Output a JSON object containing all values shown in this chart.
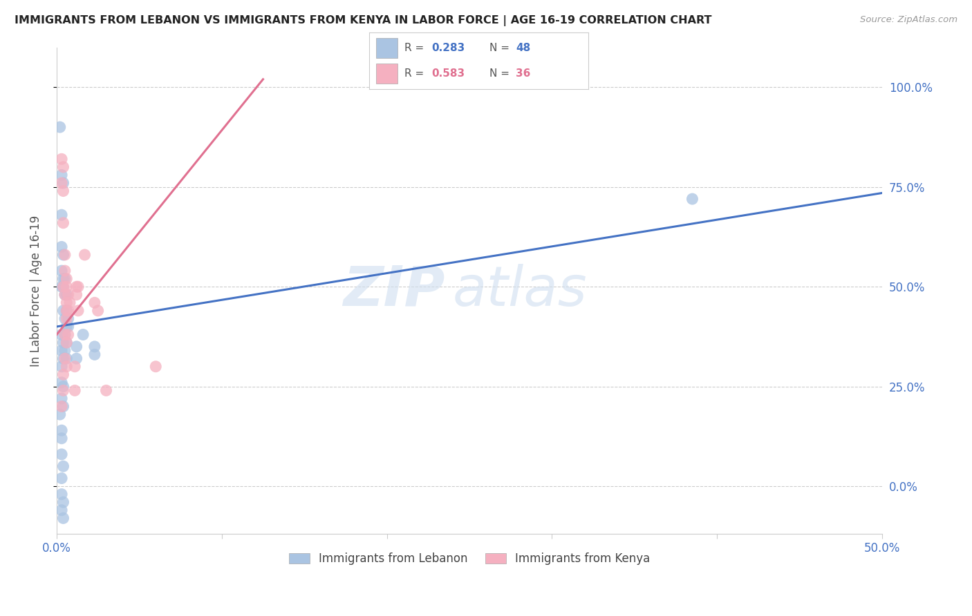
{
  "title": "IMMIGRANTS FROM LEBANON VS IMMIGRANTS FROM KENYA IN LABOR FORCE | AGE 16-19 CORRELATION CHART",
  "source": "Source: ZipAtlas.com",
  "ylabel": "In Labor Force | Age 16-19",
  "xlim": [
    0.0,
    0.5
  ],
  "ylim": [
    -0.12,
    1.1
  ],
  "xticks": [
    0.0,
    0.1,
    0.2,
    0.3,
    0.4,
    0.5
  ],
  "xtick_labels": [
    "0.0%",
    "",
    "",
    "",
    "",
    "50.0%"
  ],
  "yticks": [
    0.0,
    0.25,
    0.5,
    0.75,
    1.0
  ],
  "ytick_labels": [
    "0.0%",
    "25.0%",
    "50.0%",
    "75.0%",
    "100.0%"
  ],
  "blue_color": "#aac4e2",
  "pink_color": "#f5b0c0",
  "blue_line_color": "#4472c4",
  "pink_line_color": "#e07090",
  "watermark_text": "ZIP",
  "watermark_text2": "atlas",
  "title_color": "#222222",
  "axis_color": "#4472c4",
  "blue_scatter": [
    [
      0.002,
      0.9
    ],
    [
      0.003,
      0.78
    ],
    [
      0.004,
      0.76
    ],
    [
      0.003,
      0.68
    ],
    [
      0.003,
      0.6
    ],
    [
      0.004,
      0.58
    ],
    [
      0.003,
      0.54
    ],
    [
      0.004,
      0.52
    ],
    [
      0.005,
      0.52
    ],
    [
      0.003,
      0.5
    ],
    [
      0.004,
      0.5
    ],
    [
      0.005,
      0.48
    ],
    [
      0.006,
      0.48
    ],
    [
      0.004,
      0.44
    ],
    [
      0.006,
      0.44
    ],
    [
      0.005,
      0.42
    ],
    [
      0.007,
      0.42
    ],
    [
      0.006,
      0.4
    ],
    [
      0.007,
      0.4
    ],
    [
      0.003,
      0.38
    ],
    [
      0.005,
      0.38
    ],
    [
      0.004,
      0.36
    ],
    [
      0.006,
      0.36
    ],
    [
      0.003,
      0.34
    ],
    [
      0.005,
      0.34
    ],
    [
      0.004,
      0.32
    ],
    [
      0.006,
      0.32
    ],
    [
      0.003,
      0.3
    ],
    [
      0.003,
      0.26
    ],
    [
      0.004,
      0.25
    ],
    [
      0.003,
      0.22
    ],
    [
      0.004,
      0.2
    ],
    [
      0.002,
      0.18
    ],
    [
      0.003,
      0.14
    ],
    [
      0.003,
      0.12
    ],
    [
      0.003,
      0.08
    ],
    [
      0.004,
      0.05
    ],
    [
      0.003,
      0.02
    ],
    [
      0.003,
      -0.02
    ],
    [
      0.004,
      -0.04
    ],
    [
      0.003,
      -0.06
    ],
    [
      0.004,
      -0.08
    ],
    [
      0.012,
      0.35
    ],
    [
      0.012,
      0.32
    ],
    [
      0.016,
      0.38
    ],
    [
      0.023,
      0.35
    ],
    [
      0.023,
      0.33
    ],
    [
      0.385,
      0.72
    ]
  ],
  "pink_scatter": [
    [
      0.003,
      0.82
    ],
    [
      0.004,
      0.8
    ],
    [
      0.003,
      0.76
    ],
    [
      0.004,
      0.74
    ],
    [
      0.004,
      0.66
    ],
    [
      0.005,
      0.58
    ],
    [
      0.005,
      0.54
    ],
    [
      0.006,
      0.52
    ],
    [
      0.004,
      0.5
    ],
    [
      0.006,
      0.5
    ],
    [
      0.005,
      0.48
    ],
    [
      0.007,
      0.48
    ],
    [
      0.006,
      0.46
    ],
    [
      0.008,
      0.46
    ],
    [
      0.006,
      0.44
    ],
    [
      0.007,
      0.44
    ],
    [
      0.006,
      0.42
    ],
    [
      0.005,
      0.38
    ],
    [
      0.007,
      0.38
    ],
    [
      0.006,
      0.36
    ],
    [
      0.005,
      0.32
    ],
    [
      0.006,
      0.3
    ],
    [
      0.004,
      0.28
    ],
    [
      0.004,
      0.24
    ],
    [
      0.003,
      0.2
    ],
    [
      0.012,
      0.5
    ],
    [
      0.013,
      0.5
    ],
    [
      0.012,
      0.48
    ],
    [
      0.013,
      0.44
    ],
    [
      0.011,
      0.3
    ],
    [
      0.011,
      0.24
    ],
    [
      0.017,
      0.58
    ],
    [
      0.023,
      0.46
    ],
    [
      0.025,
      0.44
    ],
    [
      0.03,
      0.24
    ],
    [
      0.06,
      0.3
    ]
  ],
  "blue_line_x": [
    0.0,
    0.5
  ],
  "blue_line_y": [
    0.4,
    0.735
  ],
  "pink_line_x": [
    0.0,
    0.125
  ],
  "pink_line_y": [
    0.38,
    1.02
  ]
}
